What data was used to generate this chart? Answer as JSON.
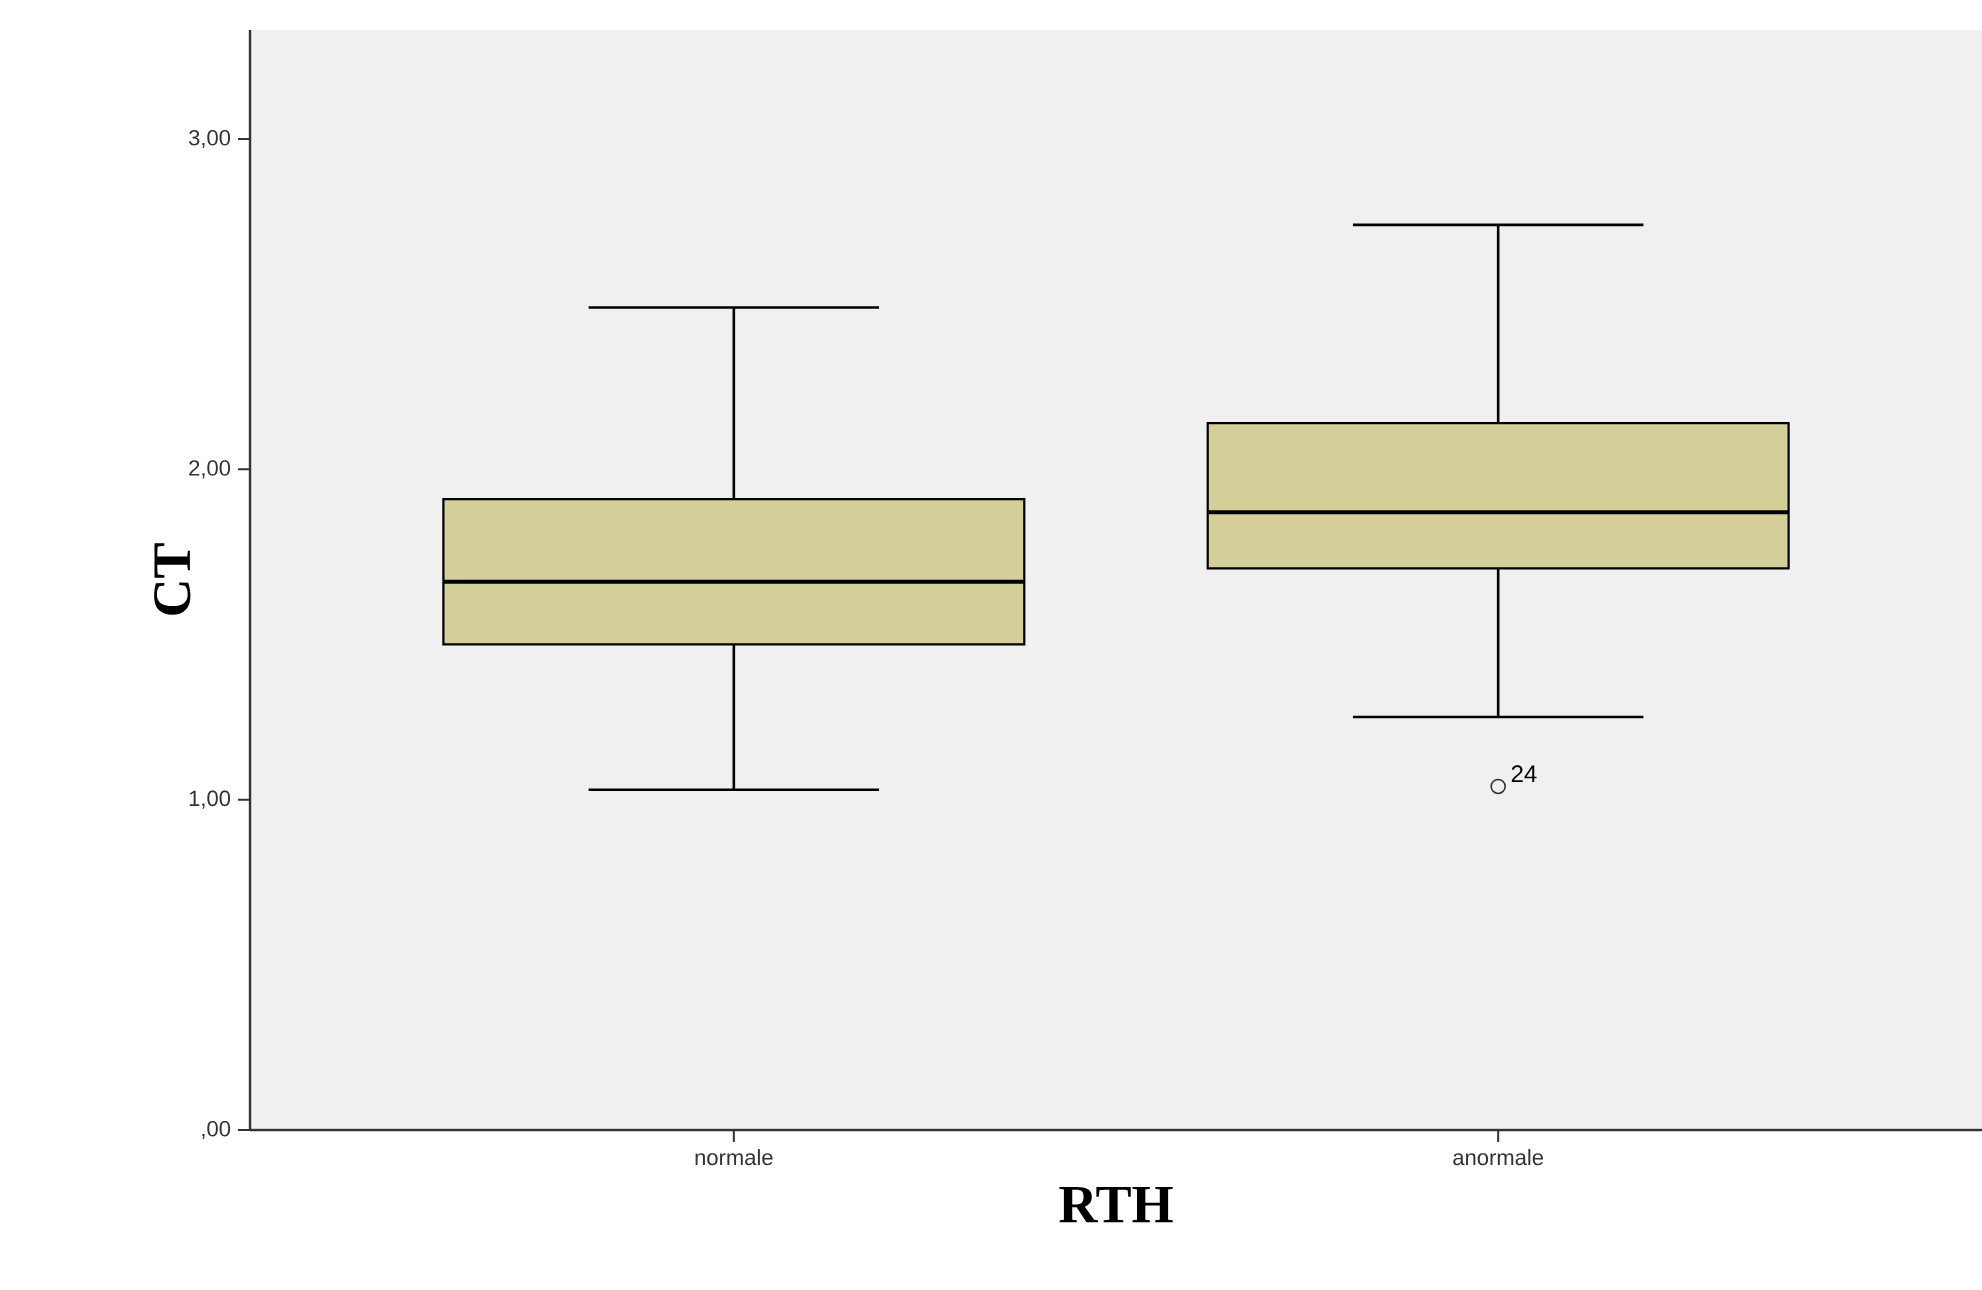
{
  "chart_data": {
    "type": "box",
    "xlabel": "RTH",
    "ylabel": "CT",
    "categories": [
      "normale",
      "anormale"
    ],
    "color": "#d4cf98",
    "boxes": [
      {
        "low": 1.03,
        "q1": 1.47,
        "median": 1.66,
        "q3": 1.91,
        "high": 2.49
      },
      {
        "low": 1.25,
        "q1": 1.7,
        "median": 1.87,
        "q3": 2.14,
        "high": 2.74,
        "outliers": [
          1.04
        ]
      }
    ],
    "ylim": [
      0,
      3.33
    ],
    "yticks": [
      {
        "value": 0,
        "label": ",00"
      },
      {
        "value": 1,
        "label": "1,00"
      },
      {
        "value": 2,
        "label": "2,00"
      },
      {
        "value": 3,
        "label": "3,00"
      }
    ],
    "annotations": [
      "24"
    ]
  }
}
